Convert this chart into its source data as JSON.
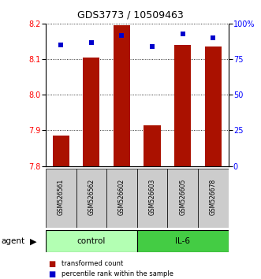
{
  "title": "GDS3773 / 10509463",
  "samples": [
    "GSM526561",
    "GSM526562",
    "GSM526602",
    "GSM526603",
    "GSM526605",
    "GSM526678"
  ],
  "red_values": [
    7.885,
    8.105,
    8.195,
    7.915,
    8.14,
    8.135
  ],
  "blue_values": [
    85,
    87,
    92,
    84,
    93,
    90
  ],
  "ylim_left": [
    7.8,
    8.2
  ],
  "ylim_right": [
    0,
    100
  ],
  "yticks_left": [
    7.8,
    7.9,
    8.0,
    8.1,
    8.2
  ],
  "yticks_right": [
    0,
    25,
    50,
    75,
    100
  ],
  "ytick_labels_right": [
    "0",
    "25",
    "50",
    "75",
    "100%"
  ],
  "control_color": "#b3ffb3",
  "il6_color": "#44cc44",
  "bar_color": "#aa1100",
  "dot_color": "#0000cc",
  "sample_box_color": "#cccccc",
  "bar_width": 0.55,
  "dot_size": 18
}
